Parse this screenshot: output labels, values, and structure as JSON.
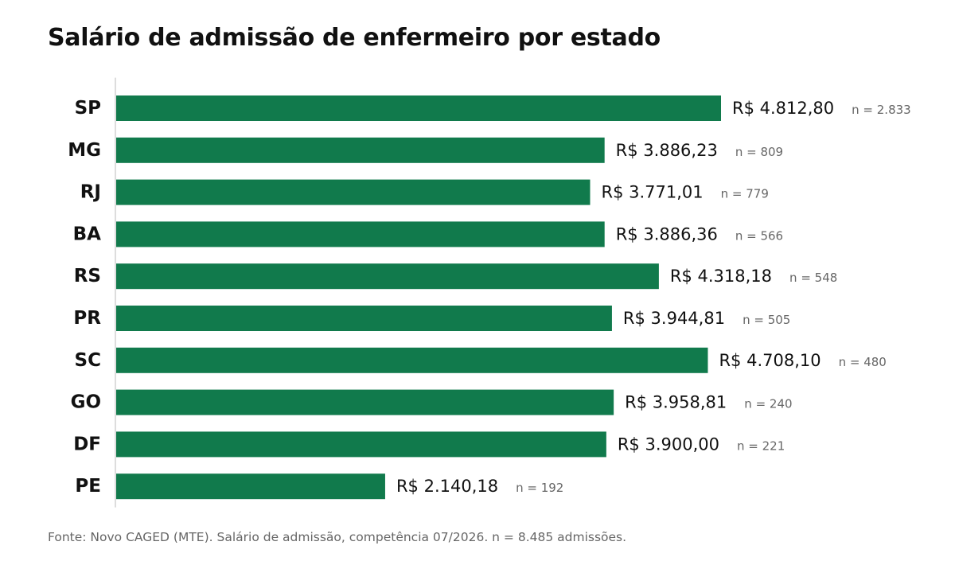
{
  "chart_data": {
    "type": "bar",
    "orientation": "horizontal",
    "title": "Salário de admissão de enfermeiro por estado",
    "source": "Fonte: Novo CAGED (MTE). Salário de admissão, competência 07/2026. n = 8.485 admissões.",
    "xlabel": "",
    "ylabel": "",
    "grid": false,
    "legend": "none",
    "bar_color": "#117a4c",
    "value_color": "#111111",
    "count_color": "#666666",
    "axis_color": "#bbbbbb",
    "categories": [
      "SP",
      "MG",
      "RJ",
      "BA",
      "RS",
      "PR",
      "SC",
      "GO",
      "DF",
      "PE"
    ],
    "values": [
      4812.8,
      3886.23,
      3771.01,
      3886.36,
      4318.18,
      3944.81,
      4708.1,
      3958.81,
      3900.0,
      2140.18
    ],
    "value_labels": [
      "R$ 4.812,80",
      "R$ 3.886,23",
      "R$ 3.771,01",
      "R$ 3.886,36",
      "R$ 4.318,18",
      "R$ 3.944,81",
      "R$ 4.708,10",
      "R$ 3.958,81",
      "R$ 3.900,00",
      "R$ 2.140,18"
    ],
    "counts": [
      2833,
      809,
      779,
      566,
      548,
      505,
      480,
      240,
      221,
      192
    ],
    "count_labels": [
      "n = 2.833",
      "n = 809",
      "n = 779",
      "n = 566",
      "n = 548",
      "n = 505",
      "n = 480",
      "n = 240",
      "n = 221",
      "n = 192"
    ],
    "xlim": [
      0,
      4812.8
    ]
  }
}
